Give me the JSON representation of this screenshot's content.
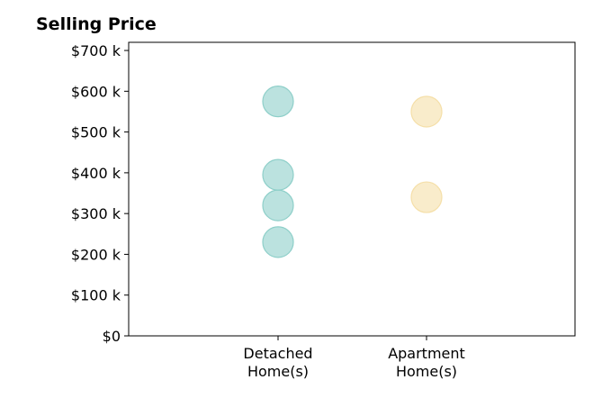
{
  "chart_data": {
    "type": "scatter",
    "title": "Selling Price",
    "xlabel": "",
    "ylabel": "",
    "categories": [
      "Detached\nHome(s)",
      "Apartment\nHome(s)"
    ],
    "ylim": [
      0,
      720
    ],
    "y_ticks": [
      0,
      100,
      200,
      300,
      400,
      500,
      600,
      700
    ],
    "y_tick_labels": [
      "$0",
      "$100 k",
      "$200 k",
      "$300 k",
      "$400 k",
      "$500 k",
      "$600 k",
      "$700 k"
    ],
    "grid": false,
    "series": [
      {
        "category": "Detached\nHome(s)",
        "values": [
          575,
          395,
          320,
          230
        ],
        "color": "#8ecfc9"
      },
      {
        "category": "Apartment\nHome(s)",
        "values": [
          550,
          340
        ],
        "color": "#f5dfa8"
      }
    ]
  }
}
